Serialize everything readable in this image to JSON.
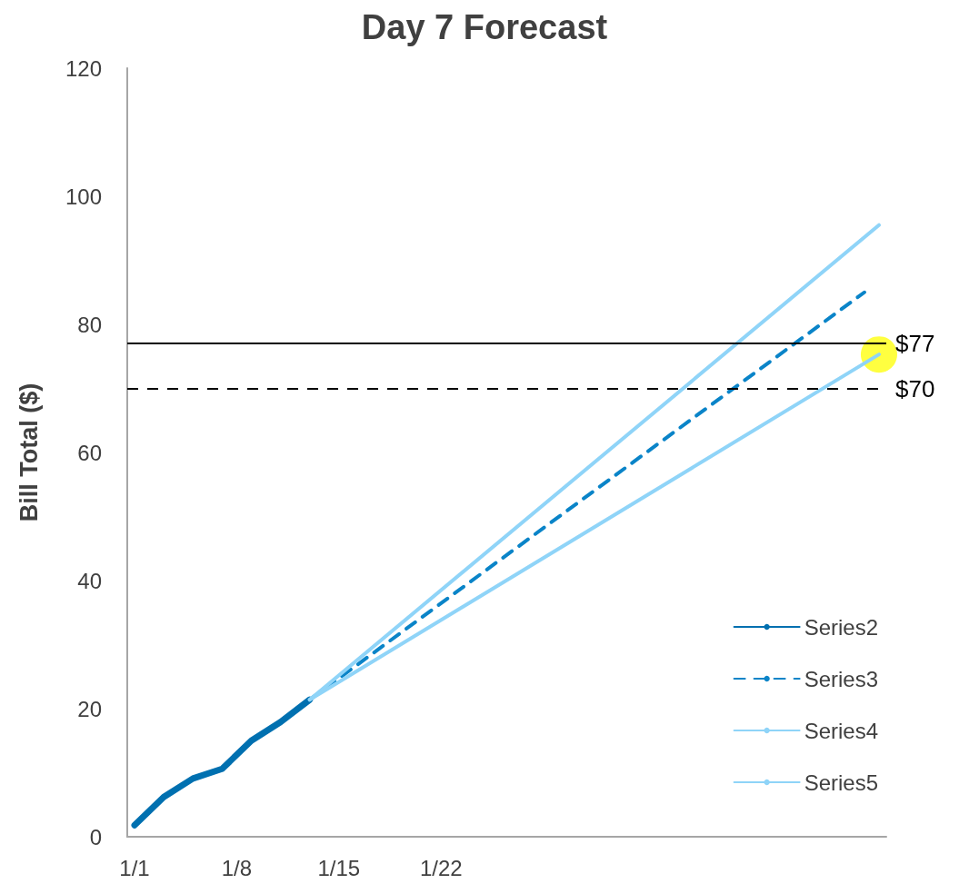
{
  "chart_data": {
    "type": "line",
    "title": "Day 7 Forecast",
    "ylabel": "Bill Total ($)",
    "categories": [
      "1/1",
      null,
      null,
      null,
      null,
      null,
      null,
      "1/8",
      null,
      null,
      null,
      null,
      null,
      null,
      "1/15",
      null,
      null,
      null,
      null,
      null,
      null,
      "1/22",
      null,
      null,
      null,
      null,
      null,
      null,
      null,
      null,
      null,
      null,
      null,
      null,
      null,
      null,
      null,
      null,
      null,
      null,
      null,
      null,
      null,
      null,
      null,
      null,
      null,
      null,
      null,
      null,
      null,
      null
    ],
    "ylim": [
      0,
      120
    ],
    "yticks": [
      0,
      20,
      40,
      60,
      80,
      100,
      120
    ],
    "series": [
      {
        "name": "Series2",
        "color": "#0070b0",
        "line_style": "solid",
        "values": [
          1.8,
          null,
          6.2,
          null,
          9.1,
          null,
          10.6,
          null,
          15.0,
          null,
          17.9,
          null,
          21.4,
          null,
          null,
          null,
          null,
          null,
          null,
          null,
          null,
          null,
          null,
          null,
          null,
          null,
          null,
          null,
          null,
          null,
          null,
          null,
          null,
          null,
          null,
          null,
          null,
          null,
          null,
          null,
          null,
          null,
          null,
          null,
          null,
          null,
          null,
          null,
          null,
          null,
          null,
          null
        ]
      },
      {
        "name": "Series3",
        "color": "#0a84c8",
        "line_style": "dashed",
        "values": [
          null,
          null,
          null,
          null,
          null,
          null,
          null,
          null,
          null,
          null,
          null,
          null,
          21.4,
          null,
          null,
          null,
          null,
          null,
          null,
          null,
          null,
          null,
          null,
          null,
          null,
          null,
          null,
          null,
          null,
          null,
          null,
          null,
          null,
          null,
          null,
          null,
          null,
          null,
          null,
          null,
          null,
          null,
          null,
          null,
          null,
          null,
          null,
          null,
          null,
          null,
          85.0,
          null
        ]
      },
      {
        "name": "Series4",
        "color": "#8fd4f8",
        "line_style": "solid",
        "values": [
          null,
          null,
          null,
          null,
          null,
          null,
          null,
          null,
          null,
          null,
          null,
          null,
          21.4,
          null,
          null,
          null,
          null,
          null,
          null,
          null,
          null,
          null,
          null,
          null,
          null,
          null,
          null,
          null,
          null,
          null,
          null,
          null,
          null,
          null,
          null,
          null,
          null,
          null,
          null,
          null,
          null,
          null,
          null,
          null,
          null,
          null,
          null,
          null,
          null,
          null,
          null,
          95.5
        ]
      },
      {
        "name": "Series5",
        "color": "#8fd4f8",
        "line_style": "solid",
        "values": [
          null,
          null,
          null,
          null,
          null,
          null,
          null,
          null,
          null,
          null,
          null,
          null,
          21.4,
          null,
          null,
          null,
          null,
          null,
          null,
          null,
          null,
          null,
          null,
          null,
          null,
          null,
          null,
          null,
          null,
          null,
          null,
          null,
          null,
          null,
          null,
          null,
          null,
          null,
          null,
          null,
          null,
          null,
          null,
          null,
          null,
          null,
          null,
          null,
          null,
          null,
          null,
          75.3
        ]
      },
      {
        "type": "scatter",
        "color": "#ffff00",
        "marker": "circle",
        "values": [
          null,
          null,
          null,
          null,
          null,
          null,
          null,
          null,
          null,
          null,
          null,
          null,
          null,
          null,
          null,
          null,
          null,
          null,
          null,
          null,
          null,
          null,
          null,
          null,
          null,
          null,
          null,
          null,
          null,
          null,
          null,
          null,
          null,
          null,
          null,
          null,
          null,
          null,
          null,
          null,
          null,
          null,
          null,
          null,
          null,
          null,
          null,
          null,
          null,
          null,
          null,
          75.3
        ]
      }
    ],
    "ref_lines": [
      {
        "axis": "y",
        "value": 77,
        "label": "$77",
        "color": "#000000",
        "line_style": "solid"
      },
      {
        "axis": "y",
        "value": 70,
        "label": "$70",
        "color": "#000000",
        "line_style": "dashed"
      }
    ],
    "marker": "none",
    "grid": false,
    "legend": "bottom right"
  }
}
